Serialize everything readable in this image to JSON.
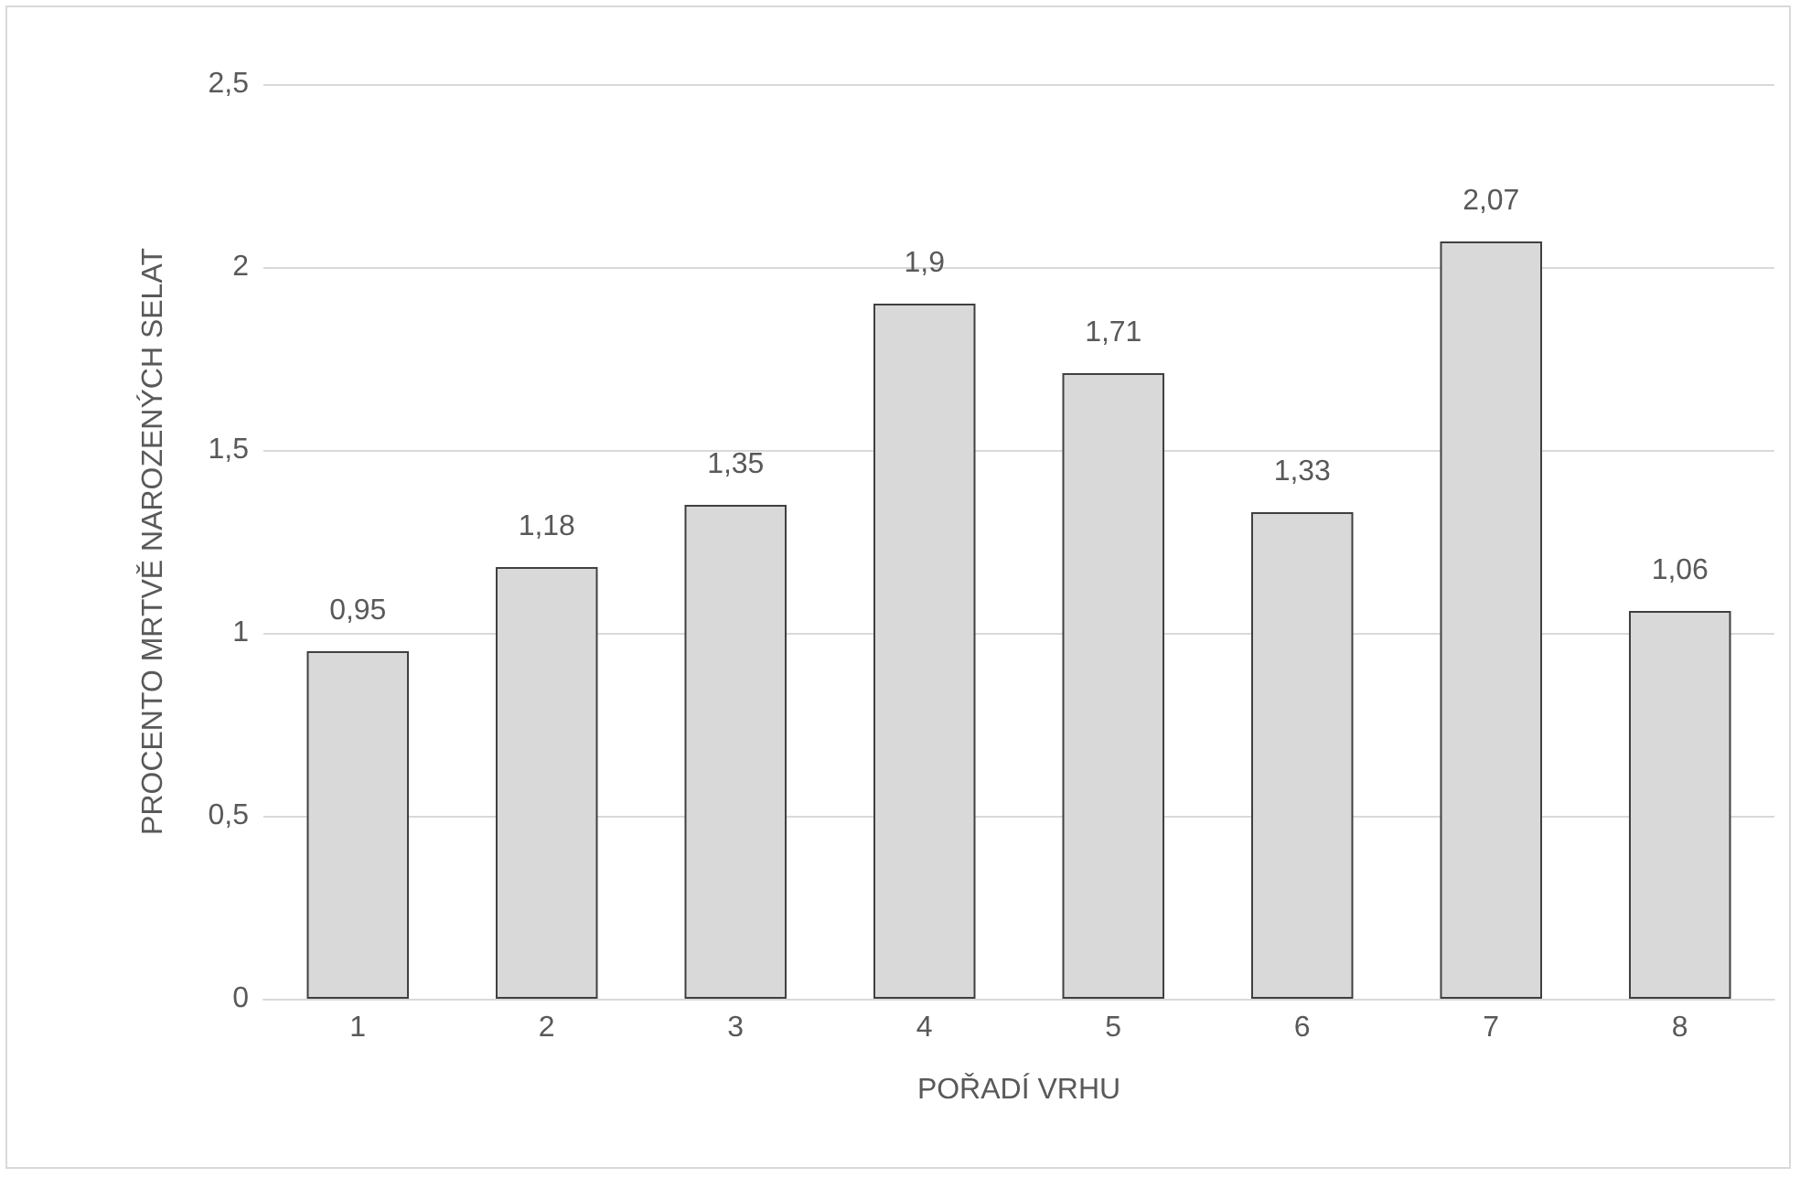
{
  "chart_data": {
    "type": "bar",
    "categories": [
      "1",
      "2",
      "3",
      "4",
      "5",
      "6",
      "7",
      "8"
    ],
    "values": [
      0.95,
      1.18,
      1.35,
      1.9,
      1.71,
      1.33,
      2.07,
      1.06
    ],
    "value_labels": [
      "0,95",
      "1,18",
      "1,35",
      "1,9",
      "1,71",
      "1,33",
      "2,07",
      "1,06"
    ],
    "color": "#d9d9d9",
    "xlabel": "POŘADÍ VRHU",
    "ylabel": "PROCENTO MRTVĚ NAROZENÝCH SELAT",
    "ylim": [
      0,
      2.5
    ],
    "yticks": [
      0,
      {
        "value": 0.5,
        "label": "0,5"
      },
      1,
      {
        "value": 1.5,
        "label": "1,5"
      },
      2,
      {
        "value": 2.5,
        "label": "2,5"
      }
    ],
    "grid": "y"
  }
}
